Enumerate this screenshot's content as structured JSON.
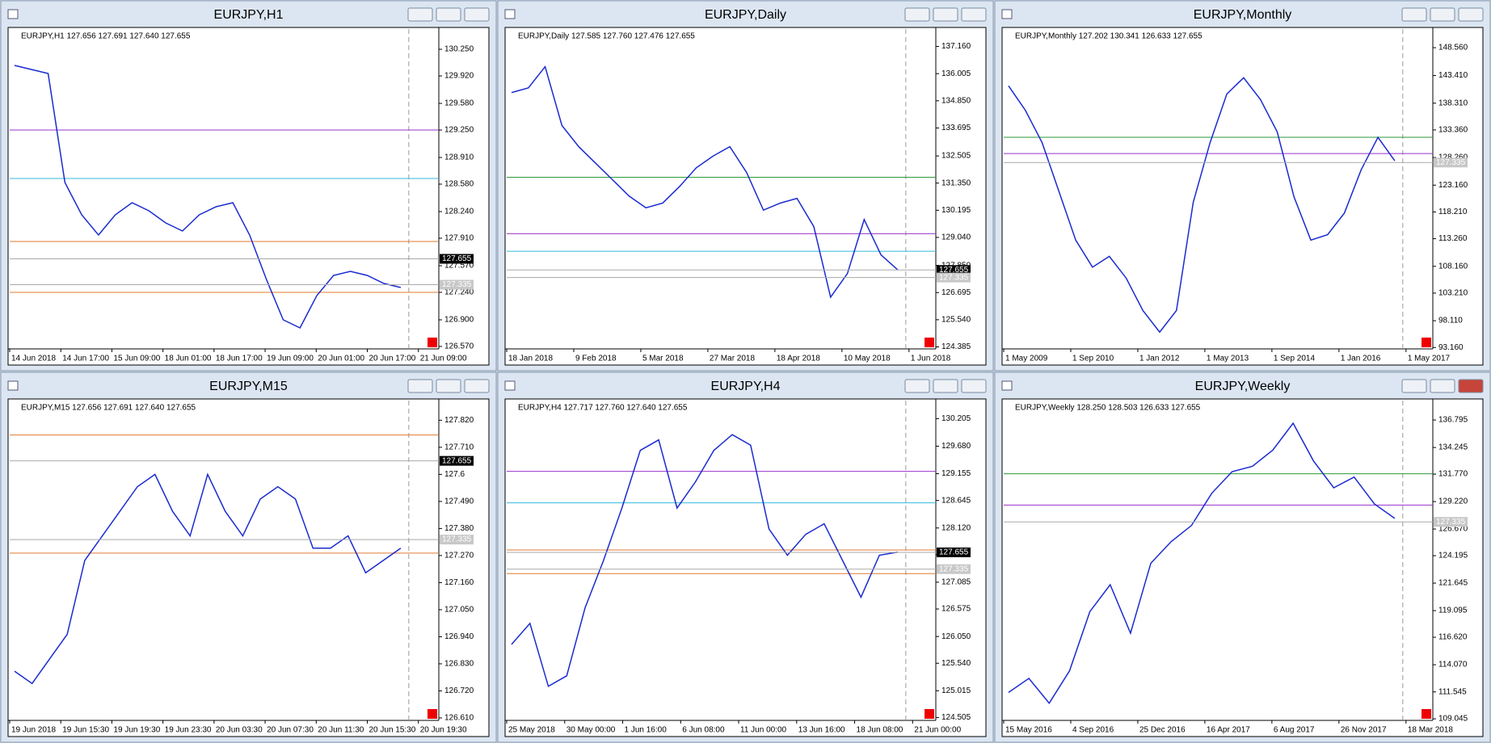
{
  "windows": [
    {
      "title": "EURJPY,H1",
      "info": "EURJPY,H1  127.656 127.691 127.640 127.655",
      "ylim": [
        126.54,
        130.5
      ],
      "yticks": [
        {
          "value": 130.25,
          "label": "130.250"
        },
        {
          "value": 129.92,
          "label": "129.920"
        },
        {
          "value": 129.58,
          "label": "129.580"
        },
        {
          "value": 129.25,
          "label": "129.250"
        },
        {
          "value": 128.91,
          "label": "128.910"
        },
        {
          "value": 128.58,
          "label": "128.580"
        },
        {
          "value": 128.24,
          "label": "128.240"
        },
        {
          "value": 127.91,
          "label": "127.910"
        },
        {
          "value": 127.57,
          "label": "127.570"
        },
        {
          "value": 127.24,
          "label": "127.240"
        },
        {
          "value": 126.9,
          "label": "126.900"
        },
        {
          "value": 126.57,
          "label": "126.570"
        }
      ],
      "xlabels": [
        "14 Jun 2018",
        "14 Jun 17:00",
        "15 Jun 09:00",
        "18 Jun 01:00",
        "18 Jun 17:00",
        "19 Jun 09:00",
        "20 Jun 01:00",
        "20 Jun 17:00",
        "21 Jun 09:00"
      ],
      "price_tags": [
        127.655,
        127.335
      ],
      "levels": [
        {
          "value": 129.25,
          "color": "#9933cc"
        },
        {
          "value": 128.65,
          "color": "#33bbdd"
        },
        {
          "value": 127.87,
          "color": "#e07a30"
        },
        {
          "value": 127.24,
          "color": "#e07a30"
        }
      ],
      "closes": [
        130.05,
        130.0,
        129.95,
        128.6,
        128.2,
        127.95,
        128.2,
        128.35,
        128.25,
        128.1,
        128.0,
        128.2,
        128.3,
        128.35,
        127.95,
        127.4,
        126.9,
        126.8,
        127.2,
        127.45,
        127.5,
        127.45,
        127.35,
        127.3
      ]
    },
    {
      "title": "EURJPY,Daily",
      "info": "EURJPY,Daily  127.585 127.760 127.476 127.655",
      "ylim": [
        124.3,
        137.9
      ],
      "yticks": [
        {
          "value": 137.16,
          "label": "137.160"
        },
        {
          "value": 136.005,
          "label": "136.005"
        },
        {
          "value": 134.85,
          "label": "134.850"
        },
        {
          "value": 133.695,
          "label": "133.695"
        },
        {
          "value": 132.505,
          "label": "132.505"
        },
        {
          "value": 131.35,
          "label": "131.350"
        },
        {
          "value": 130.195,
          "label": "130.195"
        },
        {
          "value": 129.04,
          "label": "129.040"
        },
        {
          "value": 127.85,
          "label": "127.850"
        },
        {
          "value": 126.695,
          "label": "126.695"
        },
        {
          "value": 125.54,
          "label": "125.540"
        },
        {
          "value": 124.385,
          "label": "124.385"
        }
      ],
      "xlabels": [
        "18 Jan 2018",
        "9 Feb 2018",
        "5 Mar 2018",
        "27 Mar 2018",
        "18 Apr 2018",
        "10 May 2018",
        "1 Jun 2018"
      ],
      "price_tags": [
        127.655,
        127.335
      ],
      "levels": [
        {
          "value": 131.6,
          "color": "#2a9a3a"
        },
        {
          "value": 129.2,
          "color": "#9933cc"
        },
        {
          "value": 128.45,
          "color": "#33bbdd"
        }
      ],
      "closes": [
        135.2,
        135.4,
        136.3,
        133.8,
        132.9,
        132.2,
        131.5,
        130.8,
        130.3,
        130.5,
        131.2,
        132.0,
        132.5,
        132.9,
        131.8,
        130.2,
        130.5,
        130.7,
        129.5,
        126.5,
        127.5,
        129.8,
        128.3,
        127.66
      ]
    },
    {
      "title": "EURJPY,Monthly",
      "info": "EURJPY,Monthly  127.202 130.341 126.633 127.655",
      "ylim": [
        92.9,
        152.0
      ],
      "yticks": [
        {
          "value": 148.56,
          "label": "148.560"
        },
        {
          "value": 143.41,
          "label": "143.410"
        },
        {
          "value": 138.31,
          "label": "138.310"
        },
        {
          "value": 133.36,
          "label": "133.360"
        },
        {
          "value": 128.26,
          "label": "128.260"
        },
        {
          "value": 123.16,
          "label": "123.160"
        },
        {
          "value": 118.21,
          "label": "118.210"
        },
        {
          "value": 113.26,
          "label": "113.260"
        },
        {
          "value": 108.16,
          "label": "108.160"
        },
        {
          "value": 103.21,
          "label": "103.210"
        },
        {
          "value": 98.11,
          "label": "98.110"
        },
        {
          "value": 93.16,
          "label": "93.160"
        }
      ],
      "xlabels": [
        "1 May 2009",
        "1 Sep 2010",
        "1 Jan 2012",
        "1 May 2013",
        "1 Sep 2014",
        "1 Jan 2016",
        "1 May 2017"
      ],
      "price_tags": [
        127.335
      ],
      "levels": [
        {
          "value": 132.0,
          "color": "#2a9a3a"
        },
        {
          "value": 129.0,
          "color": "#9933cc"
        }
      ],
      "closes": [
        141.5,
        137.0,
        131.0,
        122.0,
        113.0,
        108.0,
        110.0,
        106.0,
        100.0,
        96.0,
        100.0,
        120.0,
        131.0,
        140.0,
        143.0,
        139.0,
        133.0,
        121.0,
        113.0,
        114.0,
        118.0,
        126.0,
        132.0,
        127.66
      ]
    },
    {
      "title": "EURJPY,M15",
      "info": "EURJPY,M15  127.656 127.691 127.640 127.655",
      "ylim": [
        126.6,
        127.9
      ],
      "yticks": [
        {
          "value": 127.82,
          "label": "127.820"
        },
        {
          "value": 127.71,
          "label": "127.710"
        },
        127.6,
        {
          "value": 127.49,
          "label": "127.490"
        },
        {
          "value": 127.38,
          "label": "127.380"
        },
        {
          "value": 127.27,
          "label": "127.270"
        },
        {
          "value": 127.16,
          "label": "127.160"
        },
        {
          "value": 127.05,
          "label": "127.050"
        },
        {
          "value": 126.94,
          "label": "126.940"
        },
        {
          "value": 126.83,
          "label": "126.830"
        },
        {
          "value": 126.72,
          "label": "126.720"
        },
        {
          "value": 126.61,
          "label": "126.610"
        }
      ],
      "xlabels": [
        "19 Jun 2018",
        "19 Jun 15:30",
        "19 Jun 19:30",
        "19 Jun 23:30",
        "20 Jun 03:30",
        "20 Jun 07:30",
        "20 Jun 11:30",
        "20 Jun 15:30",
        "20 Jun 19:30"
      ],
      "price_tags": [
        127.655,
        127.335
      ],
      "levels": [
        {
          "value": 127.76,
          "color": "#e07a30"
        },
        {
          "value": 127.28,
          "color": "#e07a30"
        }
      ],
      "closes": [
        126.8,
        126.75,
        126.85,
        126.95,
        127.25,
        127.35,
        127.45,
        127.55,
        127.6,
        127.45,
        127.35,
        127.6,
        127.45,
        127.35,
        127.5,
        127.55,
        127.5,
        127.3,
        127.3,
        127.35,
        127.2,
        127.25,
        127.3
      ]
    },
    {
      "title": "EURJPY,H4",
      "info": "EURJPY,H4  127.717 127.760 127.640 127.655",
      "ylim": [
        124.45,
        130.55
      ],
      "yticks": [
        {
          "value": 130.205,
          "label": "130.205"
        },
        {
          "value": 129.68,
          "label": "129.680"
        },
        {
          "value": 129.155,
          "label": "129.155"
        },
        {
          "value": 128.645,
          "label": "128.645"
        },
        {
          "value": 128.12,
          "label": "128.120"
        },
        {
          "value": 127.61,
          "label": "127.610"
        },
        {
          "value": 127.085,
          "label": "127.085"
        },
        {
          "value": 126.575,
          "label": "126.575"
        },
        {
          "value": 126.05,
          "label": "126.050"
        },
        {
          "value": 125.54,
          "label": "125.540"
        },
        {
          "value": 125.015,
          "label": "125.015"
        },
        {
          "value": 124.505,
          "label": "124.505"
        }
      ],
      "xlabels": [
        "25 May 2018",
        "30 May 00:00",
        "1 Jun 16:00",
        "6 Jun 08:00",
        "11 Jun 00:00",
        "13 Jun 16:00",
        "18 Jun 08:00",
        "21 Jun 00:00"
      ],
      "price_tags": [
        127.655,
        127.335
      ],
      "levels": [
        {
          "value": 129.2,
          "color": "#9933cc"
        },
        {
          "value": 128.6,
          "color": "#33bbdd"
        },
        {
          "value": 127.7,
          "color": "#e07a30"
        },
        {
          "value": 127.25,
          "color": "#e07a30"
        }
      ],
      "closes": [
        125.9,
        126.3,
        125.1,
        125.3,
        126.6,
        127.5,
        128.5,
        129.6,
        129.8,
        128.5,
        129.0,
        129.6,
        129.9,
        129.7,
        128.1,
        127.6,
        128.0,
        128.2,
        127.5,
        126.8,
        127.6,
        127.66
      ]
    },
    {
      "title": "EURJPY,Weekly",
      "info": "EURJPY,Weekly  128.250 128.503 126.633 127.655",
      "ylim": [
        108.9,
        138.6
      ],
      "yticks": [
        {
          "value": 136.795,
          "label": "136.795"
        },
        {
          "value": 134.245,
          "label": "134.245"
        },
        {
          "value": 131.77,
          "label": "131.770"
        },
        {
          "value": 129.22,
          "label": "129.220"
        },
        {
          "value": 126.67,
          "label": "126.670"
        },
        {
          "value": 124.195,
          "label": "124.195"
        },
        {
          "value": 121.645,
          "label": "121.645"
        },
        {
          "value": 119.095,
          "label": "119.095"
        },
        {
          "value": 116.62,
          "label": "116.620"
        },
        {
          "value": 114.07,
          "label": "114.070"
        },
        {
          "value": 111.545,
          "label": "111.545"
        },
        {
          "value": 109.045,
          "label": "109.045"
        }
      ],
      "xlabels": [
        "15 May 2016",
        "4 Sep 2016",
        "25 Dec 2016",
        "16 Apr 2017",
        "6 Aug 2017",
        "26 Nov 2017",
        "18 Mar 2018"
      ],
      "price_tags": [
        127.335
      ],
      "levels": [
        {
          "value": 131.8,
          "color": "#2a9a3a"
        },
        {
          "value": 128.9,
          "color": "#9933cc"
        }
      ],
      "closes": [
        111.5,
        112.8,
        110.5,
        113.5,
        119.0,
        121.5,
        117.0,
        123.5,
        125.5,
        127.0,
        130.0,
        132.0,
        132.5,
        134.0,
        136.5,
        133.0,
        130.5,
        131.5,
        129.0,
        127.66
      ]
    }
  ]
}
